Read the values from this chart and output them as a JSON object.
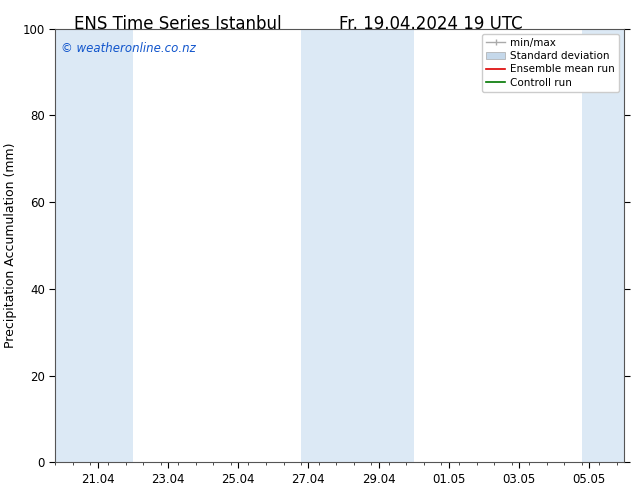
{
  "title_left": "ENS Time Series Istanbul",
  "title_right": "Fr. 19.04.2024 19 UTC",
  "ylabel": "Precipitation Accumulation (mm)",
  "watermark": "© weatheronline.co.nz",
  "watermark_color": "#1155cc",
  "ylim": [
    0,
    100
  ],
  "yticks": [
    0,
    20,
    40,
    60,
    80,
    100
  ],
  "xtick_labels": [
    "21.04",
    "23.04",
    "25.04",
    "27.04",
    "29.04",
    "01.05",
    "03.05",
    "05.05"
  ],
  "shaded_band_color": "#dce9f5",
  "legend_labels": [
    "min/max",
    "Standard deviation",
    "Ensemble mean run",
    "Controll run"
  ],
  "legend_colors": [
    "#aaaaaa",
    "#c5d8ea",
    "#dd0000",
    "#007700"
  ],
  "title_fontsize": 12,
  "axis_fontsize": 9,
  "tick_fontsize": 8.5,
  "background_color": "#ffffff"
}
